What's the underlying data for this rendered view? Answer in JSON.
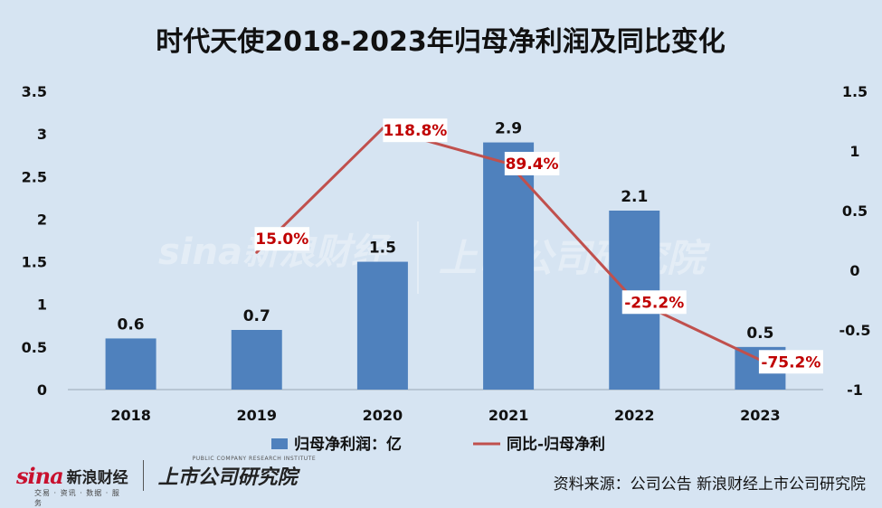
{
  "chart_data": {
    "type": "bar+line",
    "title": "时代天使2018-2023年归母净利润及同比变化",
    "categories": [
      "2018",
      "2019",
      "2020",
      "2021",
      "2022",
      "2023"
    ],
    "series": [
      {
        "name": "归母净利润：亿",
        "type": "bar",
        "axis": "left",
        "values": [
          0.6,
          0.7,
          1.5,
          2.9,
          2.1,
          0.5
        ],
        "labels": [
          "0.6",
          "0.7",
          "1.5",
          "2.9",
          "2.1",
          "0.5"
        ],
        "color": "#4f81bd"
      },
      {
        "name": "同比-归母净利",
        "type": "line",
        "axis": "right",
        "values": [
          null,
          0.15,
          1.188,
          0.894,
          -0.252,
          -0.752
        ],
        "labels": [
          null,
          "15.0%",
          "118.8%",
          "89.4%",
          "-25.2%",
          "-75.2%"
        ],
        "color": "#c0504d"
      }
    ],
    "left_axis": {
      "min": 0,
      "max": 3.5,
      "ticks": [
        "0",
        "0.5",
        "1",
        "1.5",
        "2",
        "2.5",
        "3",
        "3.5"
      ]
    },
    "right_axis": {
      "min": -1,
      "max": 1.5,
      "ticks": [
        "-1",
        "-0.5",
        "0",
        "0.5",
        "1",
        "1.5"
      ]
    },
    "grid": false,
    "legend_position": "bottom"
  },
  "watermark": {
    "brand": "sina新浪财经",
    "institute": "上市公司研究院"
  },
  "footer": {
    "sina_logo": "sina",
    "sina_name": "新浪财经",
    "sina_sub": "交易 · 资讯 · 数据 · 服务",
    "institute_name": "上市公司研究院",
    "institute_sub": "PUBLIC COMPANY RESEARCH INSTITUTE",
    "source": "资料来源：公司公告 新浪财经上市公司研究院"
  }
}
